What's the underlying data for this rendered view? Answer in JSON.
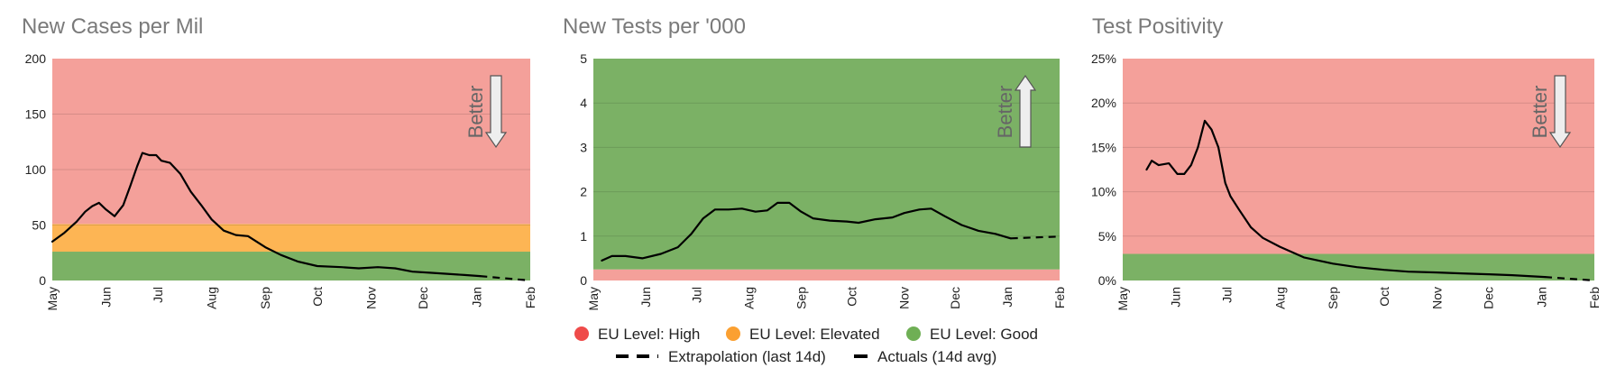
{
  "colors": {
    "high": "#f4a09a",
    "elevated": "#fdb554",
    "good": "#7bb165",
    "high_dot": "#ef4b4a",
    "elevated_dot": "#fba031",
    "good_dot": "#6faf55",
    "line": "#000000",
    "arrow_fill": "#eeeeee",
    "arrow_stroke": "#555555"
  },
  "legend": {
    "high": "EU Level: High",
    "elevated": "EU Level: Elevated",
    "good": "EU Level: Good",
    "extrapolation": "Extrapolation (last 14d)",
    "actuals": "Actuals (14d avg)"
  },
  "chart_data": [
    {
      "type": "line",
      "title": "New Cases per Mil",
      "x_ticks": [
        "May",
        "Jun",
        "Jul",
        "Aug",
        "Sep",
        "Oct",
        "Nov",
        "Dec",
        "Jan",
        "Feb"
      ],
      "x_range": [
        "2020-05-01",
        "2021-02-01"
      ],
      "ylim": [
        0,
        200
      ],
      "y_ticks": [
        0,
        50,
        100,
        150,
        200
      ],
      "y_tick_labels": [
        "0",
        "50",
        "100",
        "150",
        "200"
      ],
      "grid": true,
      "bands": [
        {
          "level": "good",
          "from": 0,
          "to": 26
        },
        {
          "level": "elevated",
          "from": 26,
          "to": 51
        },
        {
          "level": "high",
          "from": 51,
          "to": 200
        }
      ],
      "direction": {
        "label": "Better",
        "arrow": "down"
      },
      "series": [
        {
          "style": "actuals",
          "x": [
            "2020-05-01",
            "2020-05-08",
            "2020-05-15",
            "2020-05-20",
            "2020-05-24",
            "2020-05-28",
            "2020-06-01",
            "2020-06-06",
            "2020-06-11",
            "2020-06-15",
            "2020-06-19",
            "2020-06-22",
            "2020-06-26",
            "2020-06-30",
            "2020-07-03",
            "2020-07-08",
            "2020-07-14",
            "2020-07-20",
            "2020-07-26",
            "2020-08-01",
            "2020-08-08",
            "2020-08-15",
            "2020-08-22",
            "2020-09-01",
            "2020-09-10",
            "2020-09-20",
            "2020-10-01",
            "2020-10-15",
            "2020-10-25",
            "2020-11-05",
            "2020-11-15",
            "2020-11-25",
            "2020-12-05",
            "2020-12-15",
            "2020-12-25",
            "2021-01-03"
          ],
          "y": [
            35,
            43,
            53,
            62,
            67,
            70,
            64,
            58,
            68,
            85,
            103,
            115,
            113,
            113,
            108,
            106,
            96,
            80,
            68,
            55,
            45,
            41,
            40,
            30,
            23,
            17,
            13,
            12,
            11,
            12,
            11,
            8,
            7,
            6,
            5,
            4
          ]
        },
        {
          "style": "extrapolation",
          "x": [
            "2021-01-03",
            "2021-01-17",
            "2021-02-01"
          ],
          "y": [
            4,
            2,
            0
          ]
        }
      ]
    },
    {
      "type": "line",
      "title": "New Tests per '000",
      "x_ticks": [
        "May",
        "Jun",
        "Jul",
        "Aug",
        "Sep",
        "Oct",
        "Nov",
        "Dec",
        "Jan",
        "Feb"
      ],
      "x_range": [
        "2020-05-01",
        "2021-02-01"
      ],
      "ylim": [
        0,
        5
      ],
      "y_ticks": [
        0,
        1,
        2,
        3,
        4,
        5
      ],
      "y_tick_labels": [
        "0",
        "1",
        "2",
        "3",
        "4",
        "5"
      ],
      "grid": true,
      "bands": [
        {
          "level": "high",
          "from": 0,
          "to": 0.25
        },
        {
          "level": "good",
          "from": 0.25,
          "to": 5
        }
      ],
      "direction": {
        "label": "Better",
        "arrow": "up"
      },
      "series": [
        {
          "style": "actuals",
          "x": [
            "2020-05-06",
            "2020-05-12",
            "2020-05-20",
            "2020-05-30",
            "2020-06-10",
            "2020-06-20",
            "2020-06-28",
            "2020-07-05",
            "2020-07-12",
            "2020-07-20",
            "2020-07-28",
            "2020-08-05",
            "2020-08-12",
            "2020-08-18",
            "2020-08-25",
            "2020-09-01",
            "2020-09-08",
            "2020-09-18",
            "2020-09-28",
            "2020-10-05",
            "2020-10-15",
            "2020-10-25",
            "2020-11-01",
            "2020-11-10",
            "2020-11-17",
            "2020-11-25",
            "2020-12-05",
            "2020-12-15",
            "2020-12-25",
            "2021-01-03"
          ],
          "y": [
            0.45,
            0.55,
            0.55,
            0.5,
            0.6,
            0.75,
            1.05,
            1.4,
            1.6,
            1.6,
            1.62,
            1.55,
            1.58,
            1.75,
            1.75,
            1.55,
            1.4,
            1.35,
            1.33,
            1.3,
            1.38,
            1.42,
            1.52,
            1.6,
            1.62,
            1.45,
            1.25,
            1.12,
            1.05,
            0.95
          ]
        },
        {
          "style": "extrapolation",
          "x": [
            "2021-01-03",
            "2021-01-17",
            "2021-02-01"
          ],
          "y": [
            0.95,
            0.97,
            0.99
          ]
        }
      ]
    },
    {
      "type": "line",
      "title": "Test Positivity",
      "x_ticks": [
        "May",
        "Jun",
        "Jul",
        "Aug",
        "Sep",
        "Oct",
        "Nov",
        "Dec",
        "Jan",
        "Feb"
      ],
      "x_range": [
        "2020-05-01",
        "2021-02-01"
      ],
      "ylim": [
        0,
        25
      ],
      "y_ticks": [
        0,
        5,
        10,
        15,
        20,
        25
      ],
      "y_tick_labels": [
        "0%",
        "5%",
        "10%",
        "15%",
        "20%",
        "25%"
      ],
      "grid": true,
      "bands": [
        {
          "level": "good",
          "from": 0,
          "to": 3
        },
        {
          "level": "high",
          "from": 3,
          "to": 25
        }
      ],
      "direction": {
        "label": "Better",
        "arrow": "down"
      },
      "series": [
        {
          "style": "actuals",
          "x": [
            "2020-05-15",
            "2020-05-18",
            "2020-05-22",
            "2020-05-28",
            "2020-06-02",
            "2020-06-06",
            "2020-06-10",
            "2020-06-14",
            "2020-06-18",
            "2020-06-22",
            "2020-06-26",
            "2020-06-30",
            "2020-07-03",
            "2020-07-08",
            "2020-07-15",
            "2020-07-22",
            "2020-08-01",
            "2020-08-15",
            "2020-09-01",
            "2020-09-15",
            "2020-10-01",
            "2020-10-15",
            "2020-11-01",
            "2020-11-15",
            "2020-12-01",
            "2020-12-15",
            "2021-01-03"
          ],
          "y": [
            12.5,
            13.5,
            13,
            13.2,
            12,
            12,
            13,
            15,
            18,
            17,
            15,
            11,
            9.5,
            8,
            6,
            4.8,
            3.8,
            2.6,
            1.9,
            1.5,
            1.2,
            1.0,
            0.9,
            0.8,
            0.7,
            0.6,
            0.4
          ]
        },
        {
          "style": "extrapolation",
          "x": [
            "2021-01-03",
            "2021-01-17",
            "2021-02-01"
          ],
          "y": [
            0.4,
            0.2,
            0.0
          ]
        }
      ]
    }
  ]
}
